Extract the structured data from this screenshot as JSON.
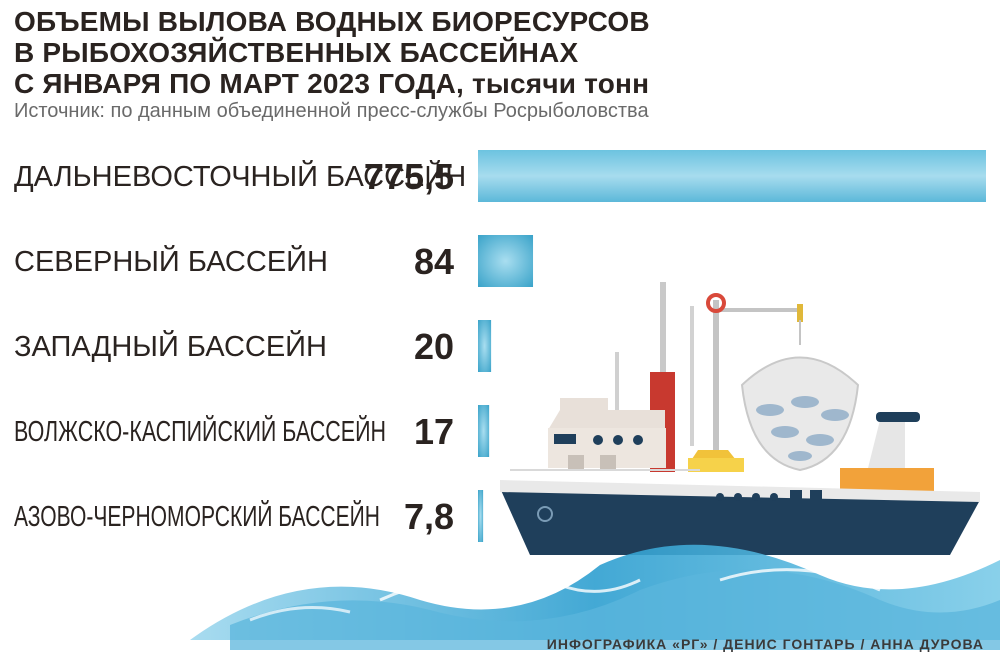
{
  "title_lines": [
    "ОБЪЕМЫ ВЫЛОВА ВОДНЫХ БИОРЕСУРСОВ",
    "В РЫБОХОЗЯЙСТВЕННЫХ БАССЕЙНАХ",
    "С ЯНВАРЯ ПО МАРТ 2023 ГОДА, тысячи тонн"
  ],
  "source": "Источник: по данным объединенной пресс-службы Росрыболовства",
  "credit": "ИНФОГРАФИКА «РГ» / ДЕНИС ГОНТАРЬ / АННА ДУРОВА",
  "colors": {
    "bar_light": "#9fd9ec",
    "bar_dark": "#3aa3c9",
    "text": "#2a2320",
    "hull": "#1f3f5b",
    "wave": "#2e9fd0"
  },
  "chart_data": {
    "type": "bar",
    "orientation": "horizontal",
    "title": "ОБЪЕМЫ ВЫЛОВА ВОДНЫХ БИОРЕСУРСОВ В РЫБОХОЗЯЙСТВЕННЫХ БАССЕЙНАХ С ЯНВАРЯ ПО МАРТ 2023 ГОДА, тысячи тонн",
    "categories": [
      "ДАЛЬНЕВОСТОЧНЫЙ БАССЕЙН",
      "СЕВЕРНЫЙ БАССЕЙН",
      "ЗАПАДНЫЙ БАССЕЙН",
      "ВОЛЖСКО-КАСПИЙСКИЙ БАССЕЙН",
      "АЗОВО-ЧЕРНОМОРСКИЙ БАССЕЙН"
    ],
    "values": [
      775.5,
      84,
      20,
      17,
      7.8
    ],
    "value_labels": [
      "775,5",
      "84",
      "20",
      "17",
      "7,8"
    ],
    "grid": false
  }
}
